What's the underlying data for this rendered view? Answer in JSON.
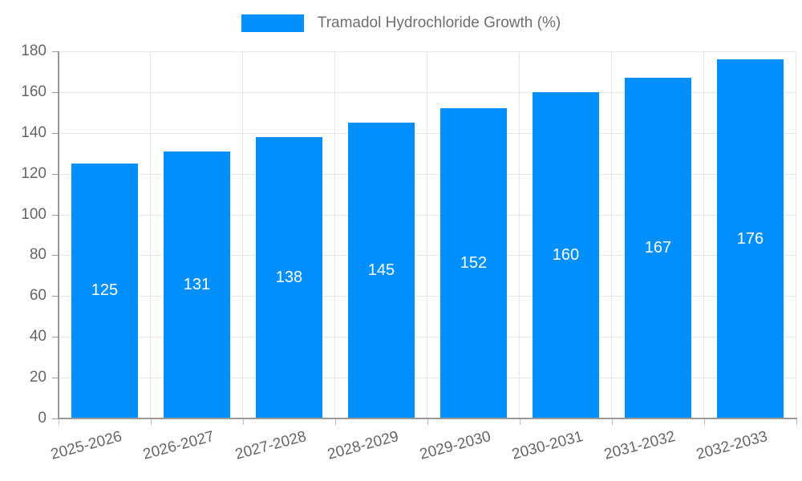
{
  "legend": {
    "label": "Tramadol Hydrochloride Growth (%)"
  },
  "chart_data": {
    "type": "bar",
    "title": "Tramadol Hydrochloride Growth (%)",
    "series_name": "Tramadol Hydrochloride Growth (%)",
    "categories": [
      "2025-2026",
      "2026-2027",
      "2027-2028",
      "2028-2029",
      "2029-2030",
      "2030-2031",
      "2031-2032",
      "2032-2033"
    ],
    "values": [
      125,
      131,
      138,
      145,
      152,
      160,
      167,
      176
    ],
    "xlabel": "",
    "ylabel": "",
    "ylim": [
      0,
      180
    ],
    "ytick_step": 20,
    "grid": true,
    "legend_position": "top",
    "x_label_rotation_deg": -15,
    "bar_color": "#008FFB",
    "value_label_color": "#FFFFFF",
    "axis_text_color": "#666666",
    "gridline_color": "#E6E6E6",
    "axis_line_color": "#999999"
  }
}
